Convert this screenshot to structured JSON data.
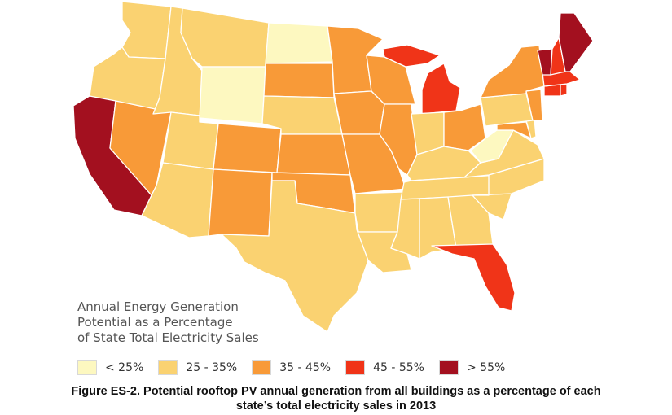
{
  "legend": {
    "title": "Annual Energy Generation\nPotential as a Percentage\nof State Total Electricity Sales",
    "items": [
      {
        "label": "< 25%",
        "color": "#fdf8c0"
      },
      {
        "label": "25 - 35%",
        "color": "#fad271"
      },
      {
        "label": "35 - 45%",
        "color": "#f89a38"
      },
      {
        "label": "45 - 55%",
        "color": "#f03418"
      },
      {
        "label": "> 55%",
        "color": "#a3101f"
      }
    ]
  },
  "caption": {
    "line1": "Figure ES-2. Potential rooftop PV annual generation from all buildings as a percentage of each",
    "line2": "state’s total electricity sales in 2013"
  },
  "states": [
    {
      "code": "WA",
      "class": 1
    },
    {
      "code": "OR",
      "class": 1
    },
    {
      "code": "CA",
      "class": 4
    },
    {
      "code": "NV",
      "class": 2
    },
    {
      "code": "ID",
      "class": 1
    },
    {
      "code": "MT",
      "class": 1
    },
    {
      "code": "WY",
      "class": 0
    },
    {
      "code": "UT",
      "class": 1
    },
    {
      "code": "AZ",
      "class": 1
    },
    {
      "code": "CO",
      "class": 2
    },
    {
      "code": "NM",
      "class": 2
    },
    {
      "code": "ND",
      "class": 0
    },
    {
      "code": "SD",
      "class": 2
    },
    {
      "code": "NE",
      "class": 1
    },
    {
      "code": "KS",
      "class": 2
    },
    {
      "code": "OK",
      "class": 2
    },
    {
      "code": "TX",
      "class": 1
    },
    {
      "code": "MN",
      "class": 2
    },
    {
      "code": "IA",
      "class": 2
    },
    {
      "code": "MO",
      "class": 2
    },
    {
      "code": "AR",
      "class": 1
    },
    {
      "code": "LA",
      "class": 1
    },
    {
      "code": "WI",
      "class": 2
    },
    {
      "code": "IL",
      "class": 2
    },
    {
      "code": "MI",
      "class": 3
    },
    {
      "code": "IN",
      "class": 1
    },
    {
      "code": "OH",
      "class": 2
    },
    {
      "code": "KY",
      "class": 1
    },
    {
      "code": "TN",
      "class": 1
    },
    {
      "code": "MS",
      "class": 1
    },
    {
      "code": "AL",
      "class": 1
    },
    {
      "code": "GA",
      "class": 1
    },
    {
      "code": "FL",
      "class": 3
    },
    {
      "code": "SC",
      "class": 1
    },
    {
      "code": "NC",
      "class": 1
    },
    {
      "code": "VA",
      "class": 1
    },
    {
      "code": "WV",
      "class": 0
    },
    {
      "code": "MD",
      "class": 2
    },
    {
      "code": "DE",
      "class": 1
    },
    {
      "code": "PA",
      "class": 1
    },
    {
      "code": "NJ",
      "class": 2
    },
    {
      "code": "NY",
      "class": 2
    },
    {
      "code": "CT",
      "class": 3
    },
    {
      "code": "RI",
      "class": 3
    },
    {
      "code": "MA",
      "class": 3
    },
    {
      "code": "VT",
      "class": 4
    },
    {
      "code": "NH",
      "class": 3
    },
    {
      "code": "ME",
      "class": 4
    }
  ]
}
